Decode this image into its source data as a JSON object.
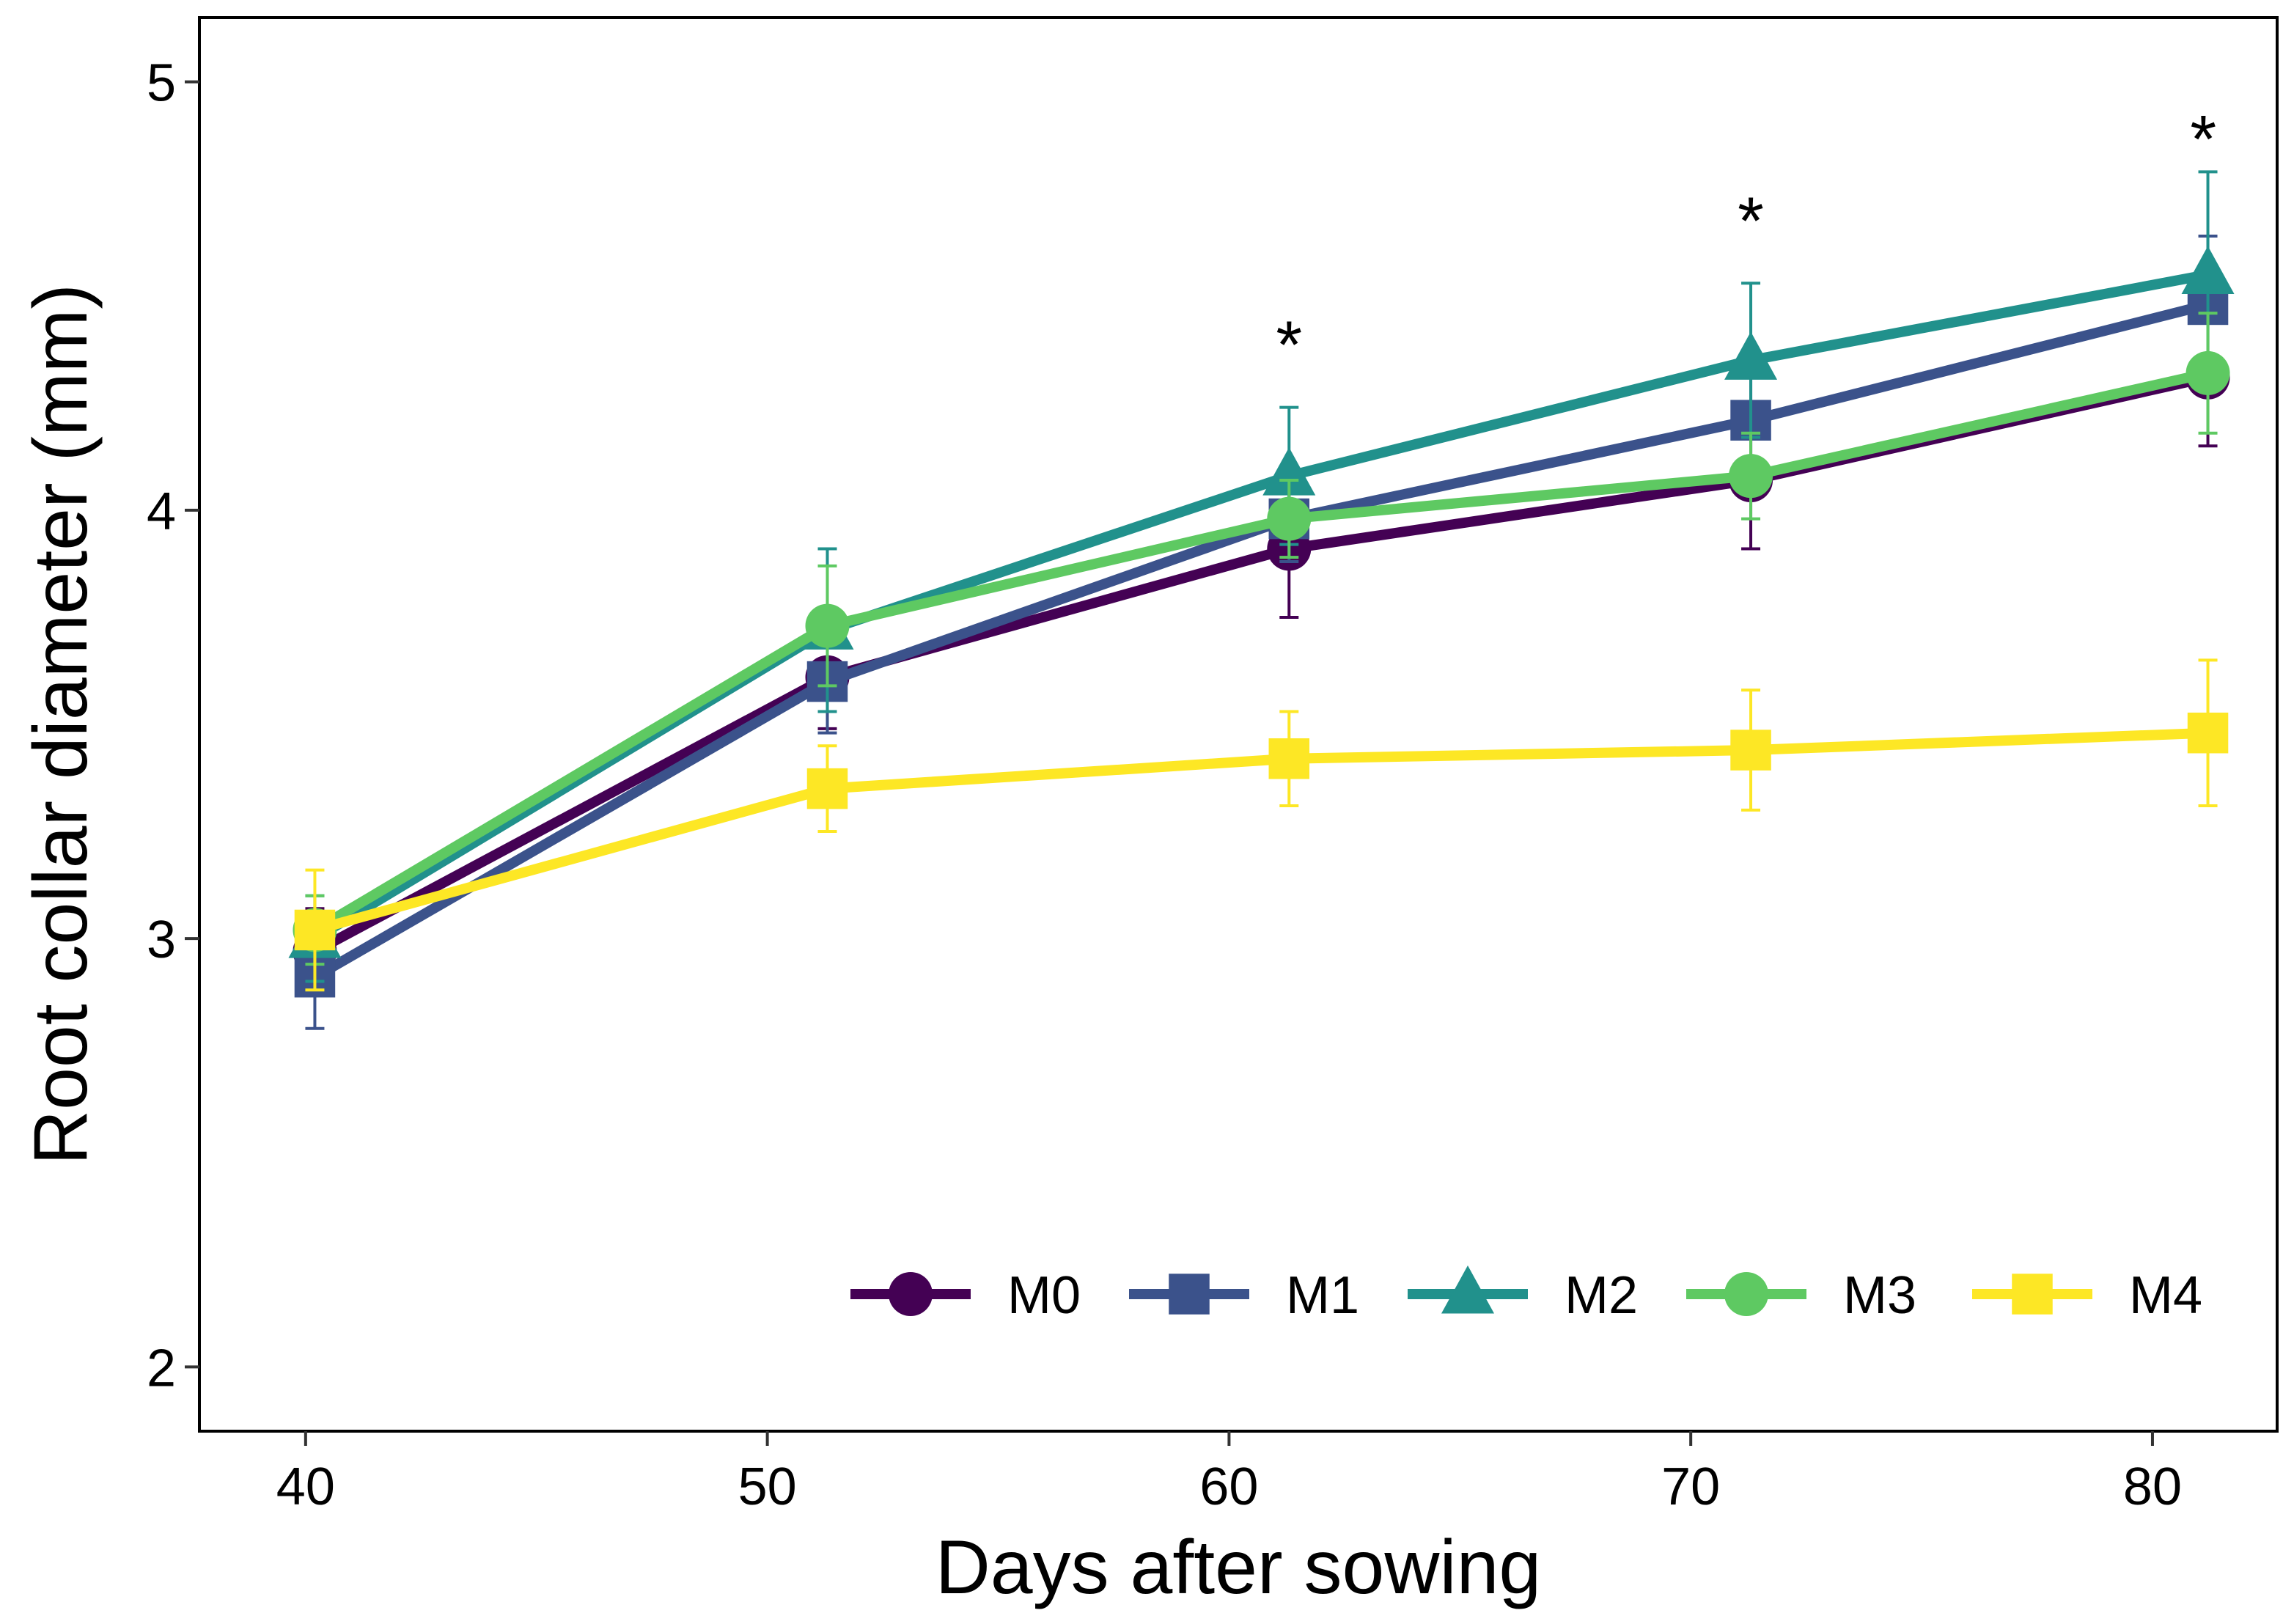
{
  "chart_data": {
    "type": "line",
    "title": "",
    "xlabel": "Days after sowing",
    "ylabel": "Root collar diameter (mm)",
    "xlim": [
      37.7,
      82.7
    ],
    "ylim": [
      1.85,
      5.15
    ],
    "xticks": [
      "40",
      "50",
      "60",
      "70",
      "80"
    ],
    "xtick_values": [
      40,
      50,
      60,
      70,
      80
    ],
    "yticks": [
      "2",
      "3",
      "4",
      "5"
    ],
    "ytick_values": [
      2,
      3,
      4,
      5
    ],
    "grid": false,
    "legend_position": "bottom-right",
    "annotations": [
      {
        "text": "*",
        "x": 61.3,
        "y": 4.4
      },
      {
        "text": "*",
        "x": 71.3,
        "y": 4.69
      },
      {
        "text": "*",
        "x": 81.1,
        "y": 4.88
      }
    ],
    "series": [
      {
        "name": "M0",
        "color": "#440154",
        "marker": "circle",
        "x": [
          40.2,
          51.3,
          61.3,
          71.3,
          81.2
        ],
        "y": [
          2.97,
          3.61,
          3.91,
          4.07,
          4.31
        ],
        "err": [
          0.1,
          0.12,
          0.16,
          0.16,
          0.16
        ]
      },
      {
        "name": "M1",
        "color": "#3b528b",
        "marker": "square",
        "x": [
          40.2,
          51.3,
          61.3,
          71.3,
          81.2
        ],
        "y": [
          2.91,
          3.6,
          3.98,
          4.21,
          4.48
        ],
        "err": [
          0.12,
          0.12,
          0.1,
          0.1,
          0.16
        ]
      },
      {
        "name": "M2",
        "color": "#21918c",
        "marker": "triangle",
        "x": [
          40.2,
          51.3,
          61.3,
          71.3,
          81.2
        ],
        "y": [
          3.0,
          3.72,
          4.08,
          4.35,
          4.55
        ],
        "err": [
          0.1,
          0.19,
          0.16,
          0.18,
          0.24
        ]
      },
      {
        "name": "M3",
        "color": "#5ec962",
        "marker": "circle",
        "x": [
          40.2,
          51.3,
          61.3,
          71.3,
          81.2
        ],
        "y": [
          3.02,
          3.73,
          3.98,
          4.08,
          4.32
        ],
        "err": [
          0.08,
          0.14,
          0.09,
          0.1,
          0.14
        ]
      },
      {
        "name": "M4",
        "color": "#fde725",
        "marker": "square",
        "x": [
          40.2,
          51.3,
          61.3,
          71.3,
          81.2
        ],
        "y": [
          3.02,
          3.35,
          3.42,
          3.44,
          3.48
        ],
        "err": [
          0.14,
          0.1,
          0.11,
          0.14,
          0.17
        ]
      }
    ]
  }
}
